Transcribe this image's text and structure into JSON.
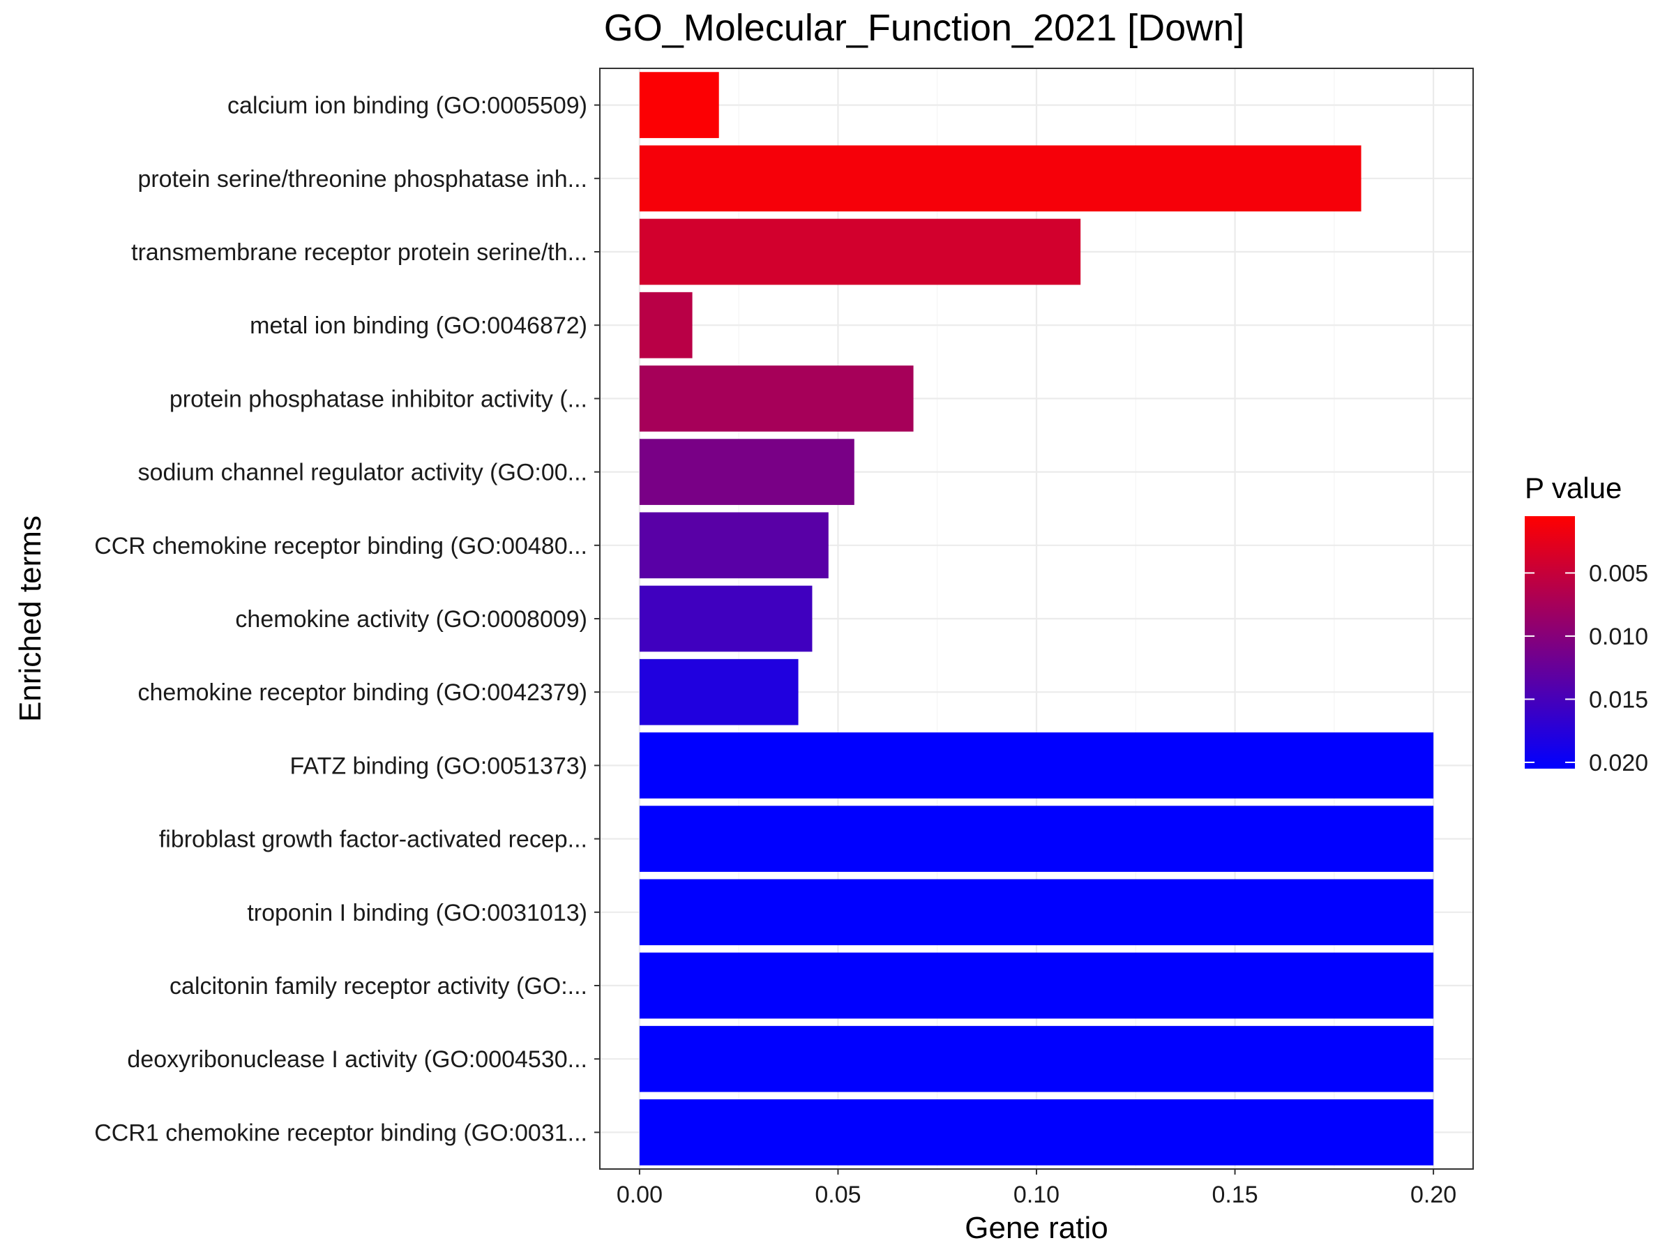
{
  "chart_data": {
    "type": "bar",
    "orientation": "horizontal",
    "title": "GO_Molecular_Function_2021 [Down]",
    "xlabel": "Gene ratio",
    "ylabel": "Enriched terms",
    "xlim": [
      -0.01,
      0.21
    ],
    "xticks": [
      0.0,
      0.05,
      0.1,
      0.15,
      0.2
    ],
    "xtick_labels": [
      "0.00",
      "0.05",
      "0.10",
      "0.15",
      "0.20"
    ],
    "grid": true,
    "categories": [
      "calcium ion binding (GO:0005509)",
      "protein serine/threonine phosphatase inh...",
      "transmembrane receptor protein serine/th...",
      "metal ion binding (GO:0046872)",
      "protein phosphatase inhibitor activity (...",
      "sodium channel regulator activity (GO:00...",
      "CCR chemokine receptor binding (GO:00480...",
      "chemokine activity (GO:0008009)",
      "chemokine receptor binding (GO:0042379)",
      "FATZ binding (GO:0051373)",
      "fibroblast growth factor-activated recep...",
      "troponin I binding (GO:0031013)",
      "calcitonin family receptor activity (GO:...",
      "deoxyribonuclease I activity (GO:0004530...",
      "CCR1 chemokine receptor binding (GO:0031..."
    ],
    "values": [
      0.02,
      0.1818,
      0.1111,
      0.0133,
      0.069,
      0.0541,
      0.0476,
      0.0435,
      0.04,
      0.2,
      0.2,
      0.2,
      0.2,
      0.2,
      0.2
    ],
    "p_values": [
      0.0007,
      0.0012,
      0.004,
      0.006,
      0.0075,
      0.011,
      0.0135,
      0.0155,
      0.018,
      0.0205,
      0.0205,
      0.0205,
      0.0205,
      0.0205,
      0.0205
    ],
    "legend": {
      "title": "P value",
      "placement": "right",
      "ticks": [
        0.005,
        0.01,
        0.015,
        0.02
      ],
      "tick_labels": [
        "0.005",
        "0.010",
        "0.015",
        "0.020"
      ],
      "range": [
        0.0005,
        0.0205
      ],
      "low_color": "#FF0000",
      "high_color": "#0000FF"
    }
  }
}
